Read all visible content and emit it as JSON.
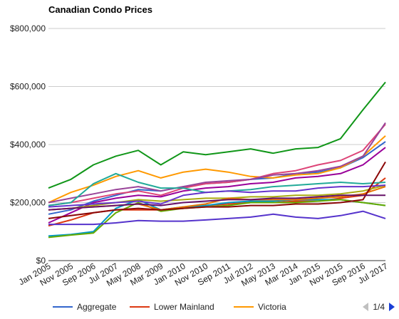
{
  "chart_data": {
    "type": "line",
    "title": "Canadian Condo Prices",
    "xlabel": "",
    "ylabel": "",
    "x": [
      "Jan 2005",
      "Nov 2005",
      "Sep 2006",
      "Jul 2007",
      "May 2008",
      "Mar 2009",
      "Jan 2010",
      "Nov 2010",
      "Sep 2011",
      "Jul 2012",
      "May 2013",
      "Mar 2014",
      "Jan 2015",
      "Nov 2015",
      "Sep 2016",
      "Jul 2017"
    ],
    "ylim": [
      0,
      800000
    ],
    "yticks": [
      "$0",
      "$200,000",
      "$400,000",
      "$600,000",
      "$800,000"
    ],
    "grid": true,
    "legend_position": "bottom",
    "series": [
      {
        "name": "Aggregate",
        "color": "#3366cc",
        "values": [
          160000,
          175000,
          205000,
          225000,
          245000,
          240000,
          255000,
          265000,
          270000,
          280000,
          285000,
          300000,
          305000,
          320000,
          355000,
          410000
        ]
      },
      {
        "name": "Lower Mainland",
        "color": "#dc3912",
        "values": [
          120000,
          140000,
          165000,
          175000,
          175000,
          175000,
          180000,
          190000,
          195000,
          200000,
          200000,
          205000,
          205000,
          215000,
          225000,
          285000
        ]
      },
      {
        "name": "Victoria",
        "color": "#ff9900",
        "values": [
          200000,
          235000,
          260000,
          290000,
          310000,
          285000,
          305000,
          315000,
          305000,
          290000,
          285000,
          295000,
          300000,
          320000,
          360000,
          430000
        ]
      },
      {
        "values": [
          250000,
          280000,
          330000,
          360000,
          380000,
          330000,
          375000,
          365000,
          375000,
          385000,
          370000,
          385000,
          390000,
          420000,
          520000,
          615000
        ]
      },
      {
        "values": [
          130000,
          165000,
          200000,
          215000,
          225000,
          220000,
          240000,
          250000,
          255000,
          265000,
          270000,
          285000,
          290000,
          300000,
          330000,
          390000
        ]
      },
      {
        "values": [
          85000,
          90000,
          100000,
          180000,
          210000,
          175000,
          185000,
          190000,
          200000,
          205000,
          205000,
          210000,
          210000,
          210000,
          200000,
          190000
        ]
      },
      {
        "values": [
          190000,
          200000,
          215000,
          230000,
          240000,
          225000,
          250000,
          265000,
          270000,
          280000,
          300000,
          310000,
          330000,
          345000,
          380000,
          470000
        ]
      },
      {
        "values": [
          80000,
          88000,
          95000,
          165000,
          200000,
          170000,
          180000,
          185000,
          190000,
          200000,
          200000,
          200000,
          205000,
          210000,
          200000,
          190000
        ]
      },
      {
        "values": [
          125000,
          125000,
          125000,
          130000,
          138000,
          136000,
          136000,
          140000,
          145000,
          150000,
          160000,
          150000,
          145000,
          155000,
          170000,
          145000
        ]
      },
      {
        "values": [
          200000,
          215000,
          230000,
          245000,
          255000,
          240000,
          255000,
          270000,
          275000,
          280000,
          295000,
          300000,
          310000,
          325000,
          360000,
          475000
        ]
      },
      {
        "values": [
          190000,
          200000,
          265000,
          300000,
          270000,
          250000,
          250000,
          235000,
          240000,
          245000,
          255000,
          260000,
          265000,
          270000,
          265000,
          270000
        ]
      },
      {
        "values": [
          175000,
          180000,
          190000,
          200000,
          210000,
          205000,
          210000,
          215000,
          215000,
          220000,
          220000,
          225000,
          225000,
          230000,
          240000,
          260000
        ]
      },
      {
        "values": [
          185000,
          190000,
          195000,
          200000,
          205000,
          195000,
          225000,
          235000,
          240000,
          235000,
          240000,
          240000,
          250000,
          255000,
          255000,
          260000
        ]
      },
      {
        "values": [
          175000,
          180000,
          185000,
          190000,
          195000,
          175000,
          185000,
          195000,
          215000,
          210000,
          210000,
          210000,
          215000,
          220000,
          230000,
          255000
        ]
      },
      {
        "values": [
          145000,
          155000,
          165000,
          175000,
          180000,
          175000,
          180000,
          185000,
          185000,
          190000,
          190000,
          195000,
          195000,
          200000,
          210000,
          340000
        ]
      },
      {
        "values": [
          175000,
          180000,
          185000,
          190000,
          195000,
          190000,
          200000,
          205000,
          210000,
          210000,
          215000,
          215000,
          220000,
          225000,
          225000,
          225000
        ]
      }
    ]
  },
  "legend": {
    "items": [
      {
        "label": "Aggregate",
        "color": "#3366cc"
      },
      {
        "label": "Lower Mainland",
        "color": "#dc3912"
      },
      {
        "label": "Victoria",
        "color": "#ff9900"
      }
    ],
    "page": "1/4"
  }
}
